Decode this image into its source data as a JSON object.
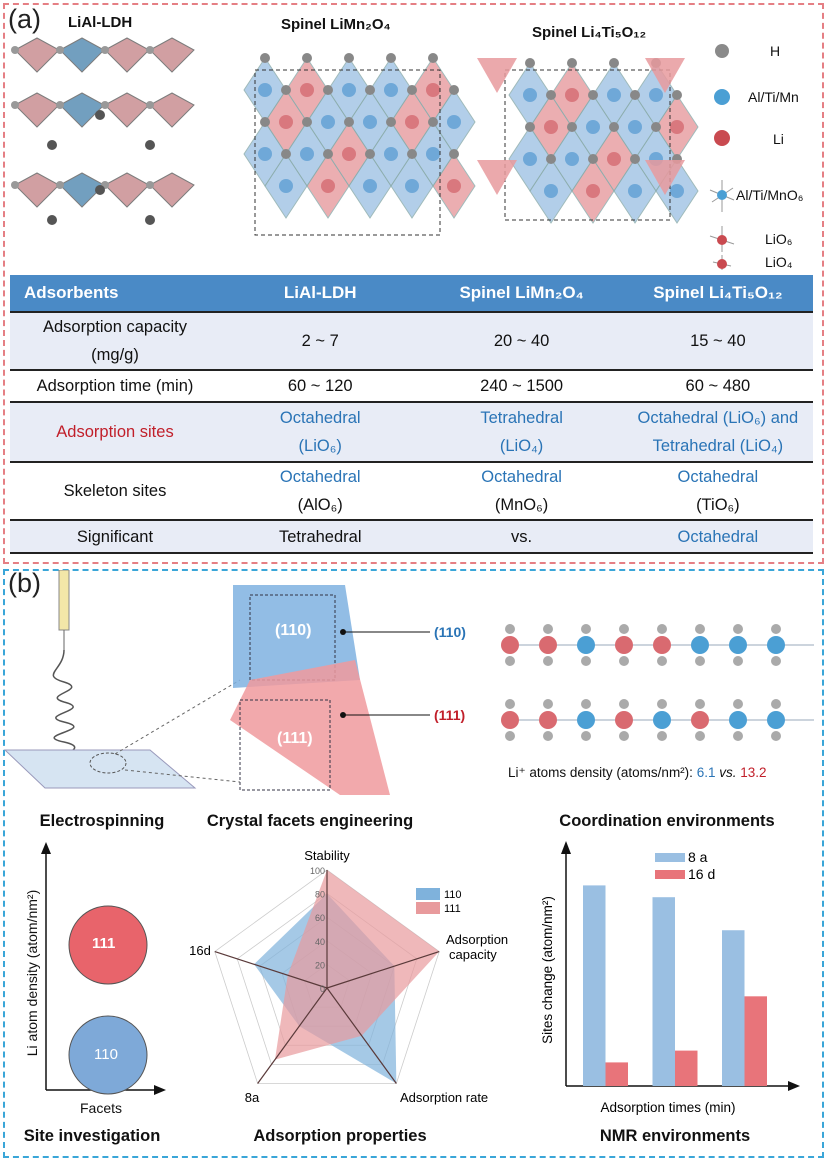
{
  "panel_a": {
    "label": "(a)",
    "structures": [
      "LiAl-LDH",
      "Spinel LiMn₂O₄",
      "Spinel Li₄Ti₅O₁₂"
    ],
    "legend": [
      "H",
      "Al/Ti/Mn",
      "Li",
      "Al/Ti/MnO₆",
      "LiO₆",
      "LiO₄"
    ],
    "table": {
      "headers": [
        "Adsorbents",
        "LiAl-LDH",
        "Spinel LiMn₂O₄",
        "Spinel Li₄Ti₅O₁₂"
      ],
      "rows": [
        {
          "label": "Adsorption capacity (mg/g)",
          "cells": [
            "2 ~ 7",
            "20 ~ 40",
            "15 ~ 40"
          ]
        },
        {
          "label": "Adsorption time (min)",
          "cells": [
            "60 ~ 120",
            "240 ~ 1500",
            "60 ~ 480"
          ]
        },
        {
          "label": "Adsorption sites",
          "cells": [
            "Octahedral (LiO₆)",
            "Tetrahedral (LiO₄)",
            "Octahedral (LiO₆) and Tetrahedral (LiO₄)"
          ]
        },
        {
          "label": "Skeleton sites",
          "cells_top": [
            "Octahedral",
            "Octahedral",
            "Octahedral"
          ],
          "cells": [
            "(AlO₆)",
            "(MnO₆)",
            "(TiO₆)"
          ]
        },
        {
          "label": "Significant",
          "cells": [
            "Tetrahedral",
            "vs.",
            "Octahedral"
          ]
        }
      ]
    }
  },
  "panel_b": {
    "label": "(b)",
    "facets": {
      "top": "(110)",
      "bottom": "(111)"
    },
    "density_text": {
      "prefix": "Li⁺ atoms density (atoms/nm²): ",
      "v1": "6.1",
      "vs": " vs. ",
      "v2": "13.2"
    },
    "section_titles": [
      "Electrospinning",
      "Crystal facets engineering",
      "Coordination environments",
      "Site investigation",
      "Adsorption properties",
      "NMR environments"
    ],
    "site_plot": {
      "ylabel": "Li atom density (atom/nm²)",
      "xlabel": "Facets",
      "circles": [
        "111",
        "110"
      ]
    },
    "colors": {
      "blue": "#8fb8dd",
      "red": "#e8747a",
      "blue_text": "#2a74b6",
      "red_text": "#c11f2a"
    }
  },
  "chart_data": [
    {
      "type": "radar",
      "axes": [
        "Stability",
        "Adsorption capacity",
        "Adsorption rate",
        "8a",
        "16d"
      ],
      "ticks": [
        "0",
        "20",
        "40",
        "60",
        "80",
        "100"
      ],
      "range": [
        0,
        100
      ],
      "legend_placement": "top-right",
      "series": [
        {
          "name": "110",
          "values": [
            80,
            60,
            100,
            40,
            65
          ]
        },
        {
          "name": "111",
          "values": [
            100,
            100,
            50,
            75,
            35
          ]
        }
      ]
    },
    {
      "type": "bar",
      "xlabel": "Adsorption times (min)",
      "ylabel": "Sites change (atom/nm²)",
      "categories": [
        "",
        "",
        ""
      ],
      "legend_placement": "top-right",
      "series": [
        {
          "name": "8 a",
          "values": [
            0.85,
            0.8,
            0.66
          ]
        },
        {
          "name": "16 d",
          "values": [
            0.1,
            0.15,
            0.38
          ]
        }
      ]
    }
  ]
}
